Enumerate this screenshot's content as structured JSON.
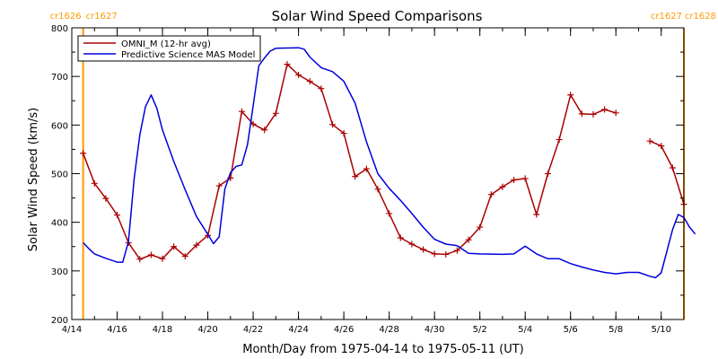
{
  "chart_data": {
    "type": "line",
    "title": "Solar Wind Speed Comparisons",
    "xlabel": "Month/Day from 1975-04-14 to 1975-05-11 (UT)",
    "ylabel": "Solar Wind Speed (km/s)",
    "xlim": [
      "1975-04-14",
      "1975-05-11"
    ],
    "ylim": [
      200,
      800
    ],
    "yticks": [
      200,
      300,
      400,
      500,
      600,
      700,
      800
    ],
    "xticks": [
      {
        "date": "1975-04-14",
        "label": "4/14"
      },
      {
        "date": "1975-04-16",
        "label": "4/16"
      },
      {
        "date": "1975-04-18",
        "label": "4/18"
      },
      {
        "date": "1975-04-20",
        "label": "4/20"
      },
      {
        "date": "1975-04-22",
        "label": "4/22"
      },
      {
        "date": "1975-04-24",
        "label": "4/24"
      },
      {
        "date": "1975-04-26",
        "label": "4/26"
      },
      {
        "date": "1975-04-28",
        "label": "4/28"
      },
      {
        "date": "1975-04-30",
        "label": "4/30"
      },
      {
        "date": "1975-05-02",
        "label": "5/2"
      },
      {
        "date": "1975-05-04",
        "label": "5/4"
      },
      {
        "date": "1975-05-06",
        "label": "5/6"
      },
      {
        "date": "1975-05-08",
        "label": "5/8"
      },
      {
        "date": "1975-05-10",
        "label": "5/10"
      }
    ],
    "grid": false,
    "legend": "top-left",
    "rotation_markers": [
      {
        "date": "1975-04-14 12:00",
        "left_label": "cr1626",
        "right_label": "cr1627",
        "color": "#ff9900"
      },
      {
        "date": "1975-05-11 00:00",
        "left_label": "cr1627",
        "right_label": "cr1628",
        "color": "#ff9900"
      }
    ],
    "series": [
      {
        "name": "OMNI_M (12-hr avg)",
        "color": "#aa0000",
        "marker": "plus",
        "segments": [
          [
            [
              "1975-04-14 12:00",
              542
            ],
            [
              "1975-04-15 00:00",
              480
            ],
            [
              "1975-04-15 12:00",
              449
            ],
            [
              "1975-04-16 00:00",
              415
            ],
            [
              "1975-04-16 12:00",
              358
            ],
            [
              "1975-04-17 00:00",
              324
            ],
            [
              "1975-04-17 12:00",
              333
            ],
            [
              "1975-04-18 00:00",
              325
            ],
            [
              "1975-04-18 12:00",
              350
            ],
            [
              "1975-04-19 00:00",
              330
            ],
            [
              "1975-04-19 12:00",
              353
            ],
            [
              "1975-04-20 00:00",
              373
            ],
            [
              "1975-04-20 12:00",
              475
            ],
            [
              "1975-04-21 00:00",
              491
            ],
            [
              "1975-04-21 12:00",
              628
            ],
            [
              "1975-04-22 00:00",
              602
            ],
            [
              "1975-04-22 12:00",
              590
            ],
            [
              "1975-04-23 00:00",
              624
            ],
            [
              "1975-04-23 12:00",
              725
            ],
            [
              "1975-04-24 00:00",
              703
            ],
            [
              "1975-04-24 12:00",
              690
            ],
            [
              "1975-04-25 00:00",
              675
            ],
            [
              "1975-04-25 12:00",
              601
            ],
            [
              "1975-04-26 00:00",
              583
            ],
            [
              "1975-04-26 12:00",
              494
            ],
            [
              "1975-04-27 00:00",
              510
            ],
            [
              "1975-04-27 12:00",
              468
            ],
            [
              "1975-04-28 00:00",
              418
            ],
            [
              "1975-04-28 12:00",
              368
            ],
            [
              "1975-04-29 00:00",
              355
            ],
            [
              "1975-04-29 12:00",
              344
            ],
            [
              "1975-04-30 00:00",
              335
            ],
            [
              "1975-04-30 12:00",
              334
            ],
            [
              "1975-05-01 00:00",
              342
            ],
            [
              "1975-05-01 12:00",
              364
            ],
            [
              "1975-05-02 00:00",
              390
            ],
            [
              "1975-05-02 12:00",
              457
            ],
            [
              "1975-05-03 00:00",
              473
            ],
            [
              "1975-05-03 12:00",
              487
            ],
            [
              "1975-05-04 00:00",
              490
            ],
            [
              "1975-05-04 12:00",
              416
            ],
            [
              "1975-05-05 00:00",
              500
            ],
            [
              "1975-05-05 12:00",
              570
            ],
            [
              "1975-05-06 00:00",
              662
            ],
            [
              "1975-05-06 12:00",
              623
            ],
            [
              "1975-05-07 00:00",
              622
            ],
            [
              "1975-05-07 12:00",
              632
            ],
            [
              "1975-05-08 00:00",
              625
            ]
          ],
          [
            [
              "1975-05-09 12:00",
              567
            ],
            [
              "1975-05-10 00:00",
              557
            ],
            [
              "1975-05-10 12:00",
              512
            ],
            [
              "1975-05-11 00:00",
              437
            ]
          ]
        ]
      },
      {
        "name": "Predictive Science MAS Model",
        "color": "#0000dd",
        "marker": "none",
        "segments": [
          [
            [
              "1975-04-14 12:00",
              358
            ],
            [
              "1975-04-14 18:00",
              346
            ],
            [
              "1975-04-15 00:00",
              335
            ],
            [
              "1975-04-15 12:00",
              326
            ],
            [
              "1975-04-16 00:00",
              318
            ],
            [
              "1975-04-16 06:00",
              318
            ],
            [
              "1975-04-16 12:00",
              360
            ],
            [
              "1975-04-16 18:00",
              490
            ],
            [
              "1975-04-17 00:00",
              580
            ],
            [
              "1975-04-17 06:00",
              638
            ],
            [
              "1975-04-17 12:00",
              662
            ],
            [
              "1975-04-17 18:00",
              635
            ],
            [
              "1975-04-18 00:00",
              590
            ],
            [
              "1975-04-18 12:00",
              525
            ],
            [
              "1975-04-19 00:00",
              467
            ],
            [
              "1975-04-19 12:00",
              412
            ],
            [
              "1975-04-20 00:00",
              375
            ],
            [
              "1975-04-20 06:00",
              356
            ],
            [
              "1975-04-20 12:00",
              370
            ],
            [
              "1975-04-20 18:00",
              468
            ],
            [
              "1975-04-21 00:00",
              502
            ],
            [
              "1975-04-21 06:00",
              515
            ],
            [
              "1975-04-21 12:00",
              518
            ],
            [
              "1975-04-21 18:00",
              560
            ],
            [
              "1975-04-22 00:00",
              640
            ],
            [
              "1975-04-22 06:00",
              722
            ],
            [
              "1975-04-22 12:00",
              738
            ],
            [
              "1975-04-22 18:00",
              752
            ],
            [
              "1975-04-23 00:00",
              758
            ],
            [
              "1975-04-24 00:00",
              759
            ],
            [
              "1975-04-24 06:00",
              756
            ],
            [
              "1975-04-24 12:00",
              740
            ],
            [
              "1975-04-25 00:00",
              718
            ],
            [
              "1975-04-25 12:00",
              710
            ],
            [
              "1975-04-26 00:00",
              690
            ],
            [
              "1975-04-26 12:00",
              645
            ],
            [
              "1975-04-27 00:00",
              565
            ],
            [
              "1975-04-27 12:00",
              500
            ],
            [
              "1975-04-28 00:00",
              470
            ],
            [
              "1975-04-28 12:00",
              445
            ],
            [
              "1975-04-29 00:00",
              418
            ],
            [
              "1975-04-29 12:00",
              390
            ],
            [
              "1975-04-30 00:00",
              365
            ],
            [
              "1975-04-30 12:00",
              355
            ],
            [
              "1975-05-01 00:00",
              352
            ],
            [
              "1975-05-01 12:00",
              336
            ],
            [
              "1975-05-02 00:00",
              335
            ],
            [
              "1975-05-03 00:00",
              334
            ],
            [
              "1975-05-03 12:00",
              335
            ],
            [
              "1975-05-04 00:00",
              351
            ],
            [
              "1975-05-04 12:00",
              335
            ],
            [
              "1975-05-05 00:00",
              325
            ],
            [
              "1975-05-05 12:00",
              325
            ],
            [
              "1975-05-06 00:00",
              315
            ],
            [
              "1975-05-06 12:00",
              308
            ],
            [
              "1975-05-07 00:00",
              302
            ],
            [
              "1975-05-07 12:00",
              297
            ],
            [
              "1975-05-08 00:00",
              294
            ],
            [
              "1975-05-08 12:00",
              297
            ],
            [
              "1975-05-09 00:00",
              297
            ],
            [
              "1975-05-09 12:00",
              289
            ],
            [
              "1975-05-09 18:00",
              286
            ],
            [
              "1975-05-10 00:00",
              296
            ],
            [
              "1975-05-10 12:00",
              385
            ],
            [
              "1975-05-10 18:00",
              416
            ],
            [
              "1975-05-11 00:00",
              410
            ],
            [
              "1975-05-11 06:00",
              390
            ],
            [
              "1975-05-11 12:00",
              376
            ]
          ]
        ]
      }
    ]
  }
}
